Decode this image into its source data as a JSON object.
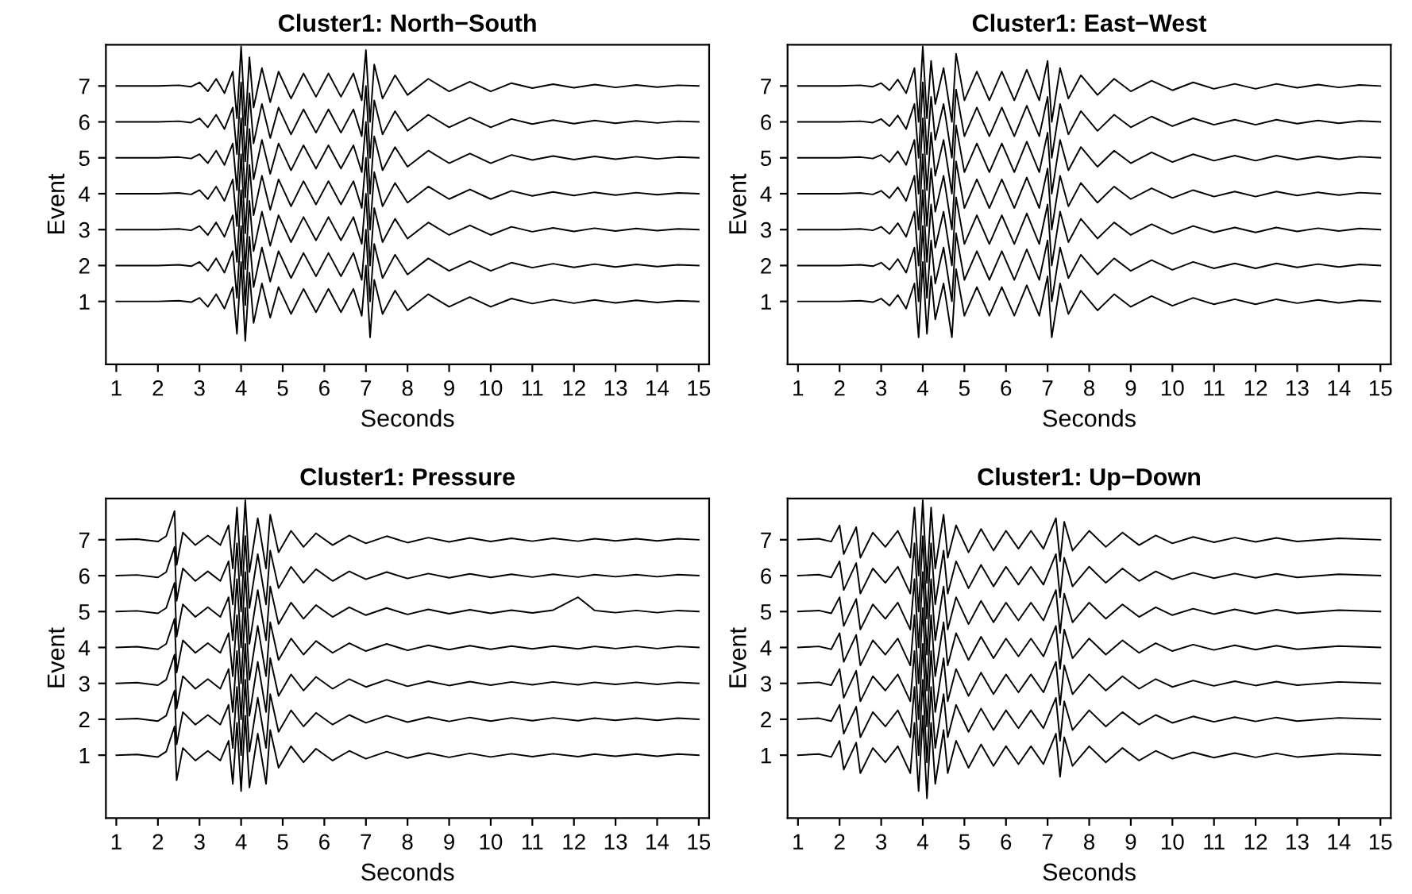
{
  "chart_data": [
    {
      "type": "line",
      "title": "Cluster1: North−South",
      "xlabel": "Seconds",
      "ylabel": "Event",
      "xlim": [
        0.75,
        15.25
      ],
      "xticks": [
        1,
        2,
        3,
        4,
        5,
        6,
        7,
        8,
        9,
        10,
        11,
        12,
        13,
        14,
        15
      ],
      "ylim": [
        -0.75,
        8.15
      ],
      "yticks": [
        1,
        2,
        3,
        4,
        5,
        6,
        7
      ],
      "line_style": "solid",
      "x": [
        1,
        1.5,
        2,
        2.5,
        2.8,
        3.0,
        3.2,
        3.4,
        3.6,
        3.8,
        3.9,
        4.0,
        4.1,
        4.2,
        4.3,
        4.5,
        4.7,
        4.9,
        5.2,
        5.5,
        5.8,
        6.1,
        6.4,
        6.7,
        6.9,
        7.0,
        7.1,
        7.2,
        7.4,
        7.7,
        8.0,
        8.5,
        9.0,
        9.5,
        10,
        10.5,
        11,
        11.5,
        12,
        12.5,
        13,
        13.5,
        14,
        14.5,
        15
      ],
      "series": [
        {
          "color": "#000000",
          "values": [
            1,
            1,
            1,
            1.02,
            0.98,
            1.1,
            0.85,
            1.2,
            0.8,
            1.4,
            0.1,
            2.1,
            -0.1,
            1.8,
            0.4,
            1.5,
            0.55,
            1.4,
            0.65,
            1.35,
            0.7,
            1.35,
            0.7,
            1.35,
            0.6,
            2,
            0,
            1.6,
            0.65,
            1.3,
            0.75,
            1.2,
            0.85,
            1.12,
            0.85,
            1.08,
            0.94,
            1.05,
            0.95,
            1.04,
            0.96,
            1.03,
            0.97,
            1.02,
            1
          ]
        },
        {
          "color": "#000000",
          "values": [
            2,
            2,
            2,
            2.02,
            1.98,
            2.1,
            1.85,
            2.2,
            1.8,
            2.4,
            1.1,
            3.1,
            0.9,
            2.8,
            1.4,
            2.5,
            1.55,
            2.4,
            1.65,
            2.35,
            1.7,
            2.35,
            1.7,
            2.35,
            1.6,
            3,
            1,
            2.6,
            1.65,
            2.3,
            1.75,
            2.2,
            1.85,
            2.12,
            1.85,
            2.08,
            1.94,
            2.05,
            1.95,
            2.04,
            1.96,
            2.03,
            1.97,
            2.02,
            2
          ]
        },
        {
          "color": "#000000",
          "values": [
            3,
            3,
            3,
            3.02,
            2.98,
            3.1,
            2.85,
            3.2,
            2.8,
            3.4,
            2.1,
            4.1,
            1.9,
            3.8,
            2.4,
            3.5,
            2.55,
            3.4,
            2.65,
            3.35,
            2.7,
            3.35,
            2.7,
            3.35,
            2.6,
            4,
            2,
            3.6,
            2.65,
            3.3,
            2.75,
            3.2,
            2.85,
            3.12,
            2.85,
            3.08,
            2.94,
            3.05,
            2.95,
            3.04,
            2.96,
            3.03,
            2.97,
            3.02,
            3
          ]
        },
        {
          "color": "#000000",
          "values": [
            4,
            4,
            4,
            4.02,
            3.98,
            4.1,
            3.85,
            4.2,
            3.8,
            4.4,
            3.1,
            5.1,
            2.9,
            4.8,
            3.4,
            4.5,
            3.55,
            4.4,
            3.65,
            4.35,
            3.7,
            4.35,
            3.7,
            4.35,
            3.6,
            5,
            3,
            4.6,
            3.65,
            4.3,
            3.75,
            4.2,
            3.85,
            4.12,
            3.85,
            4.08,
            3.94,
            4.05,
            3.95,
            4.04,
            3.96,
            4.03,
            3.97,
            4.02,
            4
          ]
        },
        {
          "color": "#000000",
          "values": [
            5,
            5,
            5,
            5.02,
            4.98,
            5.1,
            4.85,
            5.2,
            4.8,
            5.4,
            4.1,
            6.1,
            3.9,
            5.8,
            4.4,
            5.5,
            4.55,
            5.4,
            4.65,
            5.35,
            4.7,
            5.35,
            4.7,
            5.35,
            4.6,
            6,
            4,
            5.6,
            4.65,
            5.3,
            4.75,
            5.2,
            4.85,
            5.12,
            4.85,
            5.08,
            4.94,
            5.05,
            4.95,
            5.04,
            4.96,
            5.03,
            4.97,
            5.02,
            5
          ]
        },
        {
          "color": "#000000",
          "values": [
            6,
            6,
            6,
            6.02,
            5.98,
            6.1,
            5.85,
            6.2,
            5.8,
            6.4,
            5.1,
            7.1,
            4.9,
            6.8,
            5.4,
            6.5,
            5.55,
            6.4,
            5.65,
            6.35,
            5.7,
            6.35,
            5.7,
            6.35,
            5.6,
            7,
            5,
            6.6,
            5.65,
            6.3,
            5.75,
            6.2,
            5.85,
            6.12,
            5.85,
            6.08,
            5.94,
            6.05,
            5.95,
            6.04,
            5.96,
            6.03,
            5.97,
            6.02,
            6
          ]
        },
        {
          "color": "#000000",
          "values": [
            7,
            7,
            7,
            7.02,
            6.98,
            7.1,
            6.85,
            7.2,
            6.8,
            7.4,
            6.1,
            8.1,
            5.9,
            7.8,
            6.4,
            7.5,
            6.55,
            7.4,
            6.65,
            7.35,
            6.7,
            7.35,
            6.7,
            7.35,
            6.6,
            8,
            6,
            7.6,
            6.65,
            7.3,
            6.75,
            7.2,
            6.85,
            7.12,
            6.85,
            7.08,
            6.94,
            7.05,
            6.95,
            7.04,
            6.96,
            7.03,
            6.97,
            7.02,
            7
          ]
        }
      ]
    },
    {
      "type": "line",
      "title": "Cluster1: East−West",
      "xlabel": "Seconds",
      "ylabel": "Event",
      "xlim": [
        0.75,
        15.25
      ],
      "xticks": [
        1,
        2,
        3,
        4,
        5,
        6,
        7,
        8,
        9,
        10,
        11,
        12,
        13,
        14,
        15
      ],
      "ylim": [
        -0.75,
        8.15
      ],
      "yticks": [
        1,
        2,
        3,
        4,
        5,
        6,
        7
      ],
      "line_style": "solid",
      "x": [
        1,
        1.5,
        2,
        2.5,
        2.8,
        3.0,
        3.2,
        3.4,
        3.6,
        3.8,
        3.9,
        4.0,
        4.1,
        4.2,
        4.3,
        4.5,
        4.7,
        4.8,
        5.0,
        5.3,
        5.6,
        5.9,
        6.2,
        6.5,
        6.8,
        7.0,
        7.1,
        7.3,
        7.5,
        7.8,
        8.2,
        8.6,
        9.0,
        9.5,
        10,
        10.5,
        11,
        11.5,
        12,
        12.5,
        13,
        13.5,
        14,
        14.5,
        15
      ],
      "series": [
        {
          "color": "#000000",
          "values": [
            1,
            1,
            1,
            1.02,
            0.98,
            1.08,
            0.88,
            1.18,
            0.8,
            1.5,
            0,
            2.1,
            0.1,
            1.7,
            0.5,
            1.5,
            0,
            1.9,
            0.6,
            1.4,
            0.6,
            1.4,
            0.6,
            1.45,
            0.6,
            1.7,
            0,
            1.5,
            0.65,
            1.3,
            0.75,
            1.2,
            0.85,
            1.15,
            0.88,
            1.1,
            0.92,
            1.06,
            0.92,
            1.06,
            0.95,
            1.04,
            0.96,
            1.03,
            1
          ]
        },
        {
          "color": "#000000",
          "values": [
            2,
            2,
            2,
            2.02,
            1.98,
            2.08,
            1.88,
            2.18,
            1.8,
            2.5,
            1,
            3.1,
            1.1,
            2.7,
            1.5,
            2.5,
            1,
            2.9,
            1.6,
            2.4,
            1.6,
            2.4,
            1.6,
            2.45,
            1.6,
            2.7,
            1,
            2.5,
            1.65,
            2.3,
            1.75,
            2.2,
            1.85,
            2.15,
            1.88,
            2.1,
            1.92,
            2.06,
            1.92,
            2.06,
            1.95,
            2.04,
            1.96,
            2.03,
            2
          ]
        },
        {
          "color": "#000000",
          "values": [
            3,
            3,
            3,
            3.02,
            2.98,
            3.08,
            2.88,
            3.18,
            2.8,
            3.5,
            2,
            4.1,
            2.1,
            3.7,
            2.5,
            3.5,
            2,
            3.9,
            2.6,
            3.4,
            2.6,
            3.4,
            2.6,
            3.45,
            2.6,
            3.7,
            2,
            3.5,
            2.65,
            3.3,
            2.75,
            3.2,
            2.85,
            3.15,
            2.88,
            3.1,
            2.92,
            3.06,
            2.92,
            3.06,
            2.95,
            3.04,
            2.96,
            3.03,
            3
          ]
        },
        {
          "color": "#000000",
          "values": [
            4,
            4,
            4,
            4.02,
            3.98,
            4.08,
            3.88,
            4.18,
            3.8,
            4.5,
            3,
            5.1,
            3.1,
            4.7,
            3.5,
            4.5,
            3,
            4.9,
            3.6,
            4.4,
            3.6,
            4.4,
            3.6,
            4.45,
            3.6,
            4.7,
            3,
            4.5,
            3.65,
            4.3,
            3.75,
            4.2,
            3.85,
            4.15,
            3.88,
            4.1,
            3.92,
            4.06,
            3.92,
            4.06,
            3.95,
            4.04,
            3.96,
            4.03,
            4
          ]
        },
        {
          "color": "#000000",
          "values": [
            5,
            5,
            5,
            5.02,
            4.98,
            5.08,
            4.88,
            5.18,
            4.8,
            5.5,
            4,
            6.1,
            4.1,
            5.7,
            4.5,
            5.5,
            4,
            5.9,
            4.6,
            5.4,
            4.6,
            5.4,
            4.6,
            5.45,
            4.6,
            5.7,
            4,
            5.5,
            4.65,
            5.3,
            4.75,
            5.2,
            4.85,
            5.15,
            4.88,
            5.1,
            4.92,
            5.06,
            4.92,
            5.06,
            4.95,
            5.04,
            4.96,
            5.03,
            5
          ]
        },
        {
          "color": "#000000",
          "values": [
            6,
            6,
            6,
            6.02,
            5.98,
            6.08,
            5.88,
            6.18,
            5.8,
            6.5,
            5,
            7.1,
            5.1,
            6.7,
            5.5,
            6.5,
            5,
            6.9,
            5.6,
            6.4,
            5.6,
            6.4,
            5.6,
            6.45,
            5.6,
            6.7,
            5,
            6.5,
            5.65,
            6.3,
            5.75,
            6.2,
            5.85,
            6.15,
            5.88,
            6.1,
            5.92,
            6.06,
            5.92,
            6.06,
            5.95,
            6.04,
            5.96,
            6.03,
            6
          ]
        },
        {
          "color": "#000000",
          "values": [
            7,
            7,
            7,
            7.02,
            6.98,
            7.08,
            6.88,
            7.18,
            6.8,
            7.5,
            6,
            8.1,
            6.1,
            7.7,
            6.5,
            7.5,
            6,
            7.9,
            6.6,
            7.4,
            6.6,
            7.4,
            6.6,
            7.45,
            6.6,
            7.7,
            6,
            7.5,
            6.65,
            7.3,
            6.75,
            7.2,
            6.85,
            7.15,
            6.88,
            7.1,
            6.92,
            7.06,
            6.92,
            7.06,
            6.95,
            7.04,
            6.96,
            7.03,
            7
          ]
        }
      ]
    },
    {
      "type": "line",
      "title": "Cluster1: Pressure",
      "xlabel": "Seconds",
      "ylabel": "Event",
      "xlim": [
        0.75,
        15.25
      ],
      "xticks": [
        1,
        2,
        3,
        4,
        5,
        6,
        7,
        8,
        9,
        10,
        11,
        12,
        13,
        14,
        15
      ],
      "ylim": [
        -0.75,
        8.15
      ],
      "yticks": [
        1,
        2,
        3,
        4,
        5,
        6,
        7
      ],
      "line_style": "solid",
      "x": [
        1,
        1.5,
        2.0,
        2.2,
        2.4,
        2.45,
        2.6,
        2.9,
        3.2,
        3.5,
        3.7,
        3.8,
        3.9,
        4.0,
        4.1,
        4.2,
        4.4,
        4.6,
        4.7,
        4.9,
        5.2,
        5.5,
        5.8,
        6.2,
        6.6,
        7.0,
        7.5,
        8.0,
        8.5,
        9.0,
        9.5,
        10,
        10.5,
        11,
        11.5,
        12.1,
        12.5,
        13,
        13.5,
        14,
        14.5,
        15
      ],
      "series": [
        {
          "color": "#000000",
          "values": [
            1,
            1.02,
            0.95,
            1.1,
            1.8,
            0.3,
            1.2,
            0.85,
            1.12,
            0.85,
            1.4,
            0.2,
            1.9,
            0,
            2.1,
            0.1,
            1.6,
            0.2,
            1.7,
            0.65,
            1.25,
            0.8,
            1.18,
            0.85,
            1.12,
            0.9,
            1.1,
            0.92,
            1.06,
            0.94,
            1.05,
            0.95,
            1.04,
            0.96,
            1.04,
            0.96,
            1.03,
            0.97,
            1.03,
            0.97,
            1.03,
            1
          ]
        },
        {
          "color": "#000000",
          "values": [
            2,
            2.02,
            1.95,
            2.1,
            2.8,
            1.3,
            2.2,
            1.85,
            2.12,
            1.85,
            2.4,
            1.2,
            2.9,
            1,
            3.1,
            1.1,
            2.6,
            1.2,
            2.7,
            1.65,
            2.25,
            1.8,
            2.18,
            1.85,
            2.12,
            1.9,
            2.1,
            1.92,
            2.06,
            1.94,
            2.05,
            1.95,
            2.04,
            1.96,
            2.04,
            1.96,
            2.03,
            1.97,
            2.03,
            1.97,
            2.03,
            2
          ]
        },
        {
          "color": "#000000",
          "values": [
            3,
            3.02,
            2.95,
            3.1,
            3.8,
            2.3,
            3.2,
            2.85,
            3.12,
            2.85,
            3.4,
            2.2,
            3.9,
            2,
            4.1,
            2.1,
            3.6,
            2.2,
            3.7,
            2.65,
            3.25,
            2.8,
            3.18,
            2.85,
            3.12,
            2.9,
            3.1,
            2.92,
            3.06,
            2.94,
            3.05,
            2.95,
            3.04,
            2.96,
            3.04,
            2.96,
            3.03,
            2.97,
            3.03,
            2.97,
            3.03,
            3
          ]
        },
        {
          "color": "#000000",
          "values": [
            4,
            4.02,
            3.95,
            4.1,
            4.8,
            3.3,
            4.2,
            3.85,
            4.12,
            3.85,
            4.4,
            3.2,
            4.9,
            3,
            5.1,
            3.1,
            4.6,
            3.2,
            4.7,
            3.65,
            4.25,
            3.8,
            4.18,
            3.85,
            4.12,
            3.9,
            4.1,
            3.92,
            4.06,
            3.94,
            4.05,
            3.95,
            4.04,
            3.96,
            4.04,
            3.96,
            4.03,
            3.97,
            4.03,
            3.97,
            4.03,
            4
          ]
        },
        {
          "color": "#000000",
          "values": [
            5,
            5.02,
            4.95,
            5.1,
            5.8,
            4.3,
            5.2,
            4.85,
            5.12,
            4.85,
            5.4,
            4.2,
            5.9,
            4,
            6.1,
            4.1,
            5.6,
            4.2,
            5.7,
            4.65,
            5.25,
            4.8,
            5.18,
            4.85,
            5.12,
            4.9,
            5.1,
            4.92,
            5.06,
            4.94,
            5.05,
            4.95,
            5.04,
            4.96,
            5.04,
            5.4,
            5.03,
            4.97,
            5.03,
            4.97,
            5.03,
            5
          ]
        },
        {
          "color": "#000000",
          "values": [
            6,
            6.02,
            5.95,
            6.1,
            6.8,
            5.3,
            6.2,
            5.85,
            6.12,
            5.85,
            6.4,
            5.2,
            6.9,
            5,
            7.1,
            5.1,
            6.6,
            5.2,
            6.7,
            5.65,
            6.25,
            5.8,
            6.18,
            5.85,
            6.12,
            5.9,
            6.1,
            5.92,
            6.06,
            5.94,
            6.05,
            5.95,
            6.04,
            5.96,
            6.04,
            5.96,
            6.03,
            5.97,
            6.03,
            5.97,
            6.03,
            6
          ]
        },
        {
          "color": "#000000",
          "values": [
            7,
            7.02,
            6.95,
            7.1,
            7.8,
            6.3,
            7.2,
            6.85,
            7.12,
            6.85,
            7.4,
            6.2,
            7.9,
            6,
            8.1,
            6.1,
            7.6,
            6.2,
            7.7,
            6.65,
            7.25,
            6.8,
            7.18,
            6.85,
            7.12,
            6.9,
            7.1,
            6.92,
            7.06,
            6.94,
            7.05,
            6.95,
            7.04,
            6.96,
            7.04,
            6.96,
            7.03,
            6.97,
            7.03,
            6.97,
            7.03,
            7
          ]
        }
      ]
    },
    {
      "type": "line",
      "title": "Cluster1: Up−Down",
      "xlabel": "Seconds",
      "ylabel": "Event",
      "xlim": [
        0.75,
        15.25
      ],
      "xticks": [
        1,
        2,
        3,
        4,
        5,
        6,
        7,
        8,
        9,
        10,
        11,
        12,
        13,
        14,
        15
      ],
      "ylim": [
        -0.75,
        8.15
      ],
      "yticks": [
        1,
        2,
        3,
        4,
        5,
        6,
        7
      ],
      "line_style": "solid",
      "x": [
        1,
        1.5,
        1.8,
        2.0,
        2.1,
        2.4,
        2.5,
        2.8,
        3.1,
        3.4,
        3.7,
        3.8,
        3.9,
        4.0,
        4.1,
        4.2,
        4.3,
        4.5,
        4.6,
        4.8,
        5.1,
        5.4,
        5.7,
        6.0,
        6.3,
        6.6,
        6.9,
        7.2,
        7.3,
        7.4,
        7.6,
        8.0,
        8.4,
        8.8,
        9.2,
        9.6,
        10,
        10.5,
        11,
        11.5,
        12,
        12.5,
        13,
        14,
        15
      ],
      "series": [
        {
          "color": "#000000",
          "values": [
            1,
            1.03,
            0.95,
            1.4,
            0.6,
            1.35,
            0.5,
            1.2,
            0.8,
            1.25,
            0.5,
            1.9,
            0,
            2.1,
            -0.2,
            1.9,
            0.2,
            1.7,
            0.5,
            1.4,
            0.65,
            1.3,
            0.7,
            1.25,
            0.75,
            1.25,
            0.75,
            1.6,
            0.4,
            1.5,
            0.7,
            1.25,
            0.8,
            1.2,
            0.85,
            1.12,
            0.9,
            1.08,
            0.93,
            1.06,
            0.94,
            1.05,
            0.95,
            1.04,
            1
          ]
        },
        {
          "color": "#000000",
          "values": [
            2,
            2.03,
            1.95,
            2.4,
            1.6,
            2.35,
            1.5,
            2.2,
            1.8,
            2.25,
            1.5,
            2.9,
            1,
            3.1,
            0.8,
            2.9,
            1.2,
            2.7,
            1.5,
            2.4,
            1.65,
            2.3,
            1.7,
            2.25,
            1.75,
            2.25,
            1.75,
            2.6,
            1.4,
            2.5,
            1.7,
            2.25,
            1.8,
            2.2,
            1.85,
            2.12,
            1.9,
            2.08,
            1.93,
            2.06,
            1.94,
            2.05,
            1.95,
            2.04,
            2
          ]
        },
        {
          "color": "#000000",
          "values": [
            3,
            3.03,
            2.95,
            3.4,
            2.6,
            3.35,
            2.5,
            3.2,
            2.8,
            3.25,
            2.5,
            3.9,
            2,
            4.1,
            1.8,
            3.9,
            2.2,
            3.7,
            2.5,
            3.4,
            2.65,
            3.3,
            2.7,
            3.25,
            2.75,
            3.25,
            2.75,
            3.6,
            2.4,
            3.5,
            2.7,
            3.25,
            2.8,
            3.2,
            2.85,
            3.12,
            2.9,
            3.08,
            2.93,
            3.06,
            2.94,
            3.05,
            2.95,
            3.04,
            3
          ]
        },
        {
          "color": "#000000",
          "values": [
            4,
            4.03,
            3.95,
            4.4,
            3.6,
            4.35,
            3.5,
            4.2,
            3.8,
            4.25,
            3.5,
            4.9,
            3,
            5.1,
            2.8,
            4.9,
            3.2,
            4.7,
            3.5,
            4.4,
            3.65,
            4.3,
            3.7,
            4.25,
            3.75,
            4.25,
            3.75,
            4.6,
            3.4,
            4.5,
            3.7,
            4.25,
            3.8,
            4.2,
            3.85,
            4.12,
            3.9,
            4.08,
            3.93,
            4.06,
            3.94,
            4.05,
            3.95,
            4.04,
            4
          ]
        },
        {
          "color": "#000000",
          "values": [
            5,
            5.03,
            4.95,
            5.4,
            4.6,
            5.35,
            4.5,
            5.2,
            4.8,
            5.25,
            4.5,
            5.9,
            4,
            6.1,
            3.8,
            5.9,
            4.2,
            5.7,
            4.5,
            5.4,
            4.65,
            5.3,
            4.7,
            5.25,
            4.75,
            5.25,
            4.75,
            5.6,
            4.4,
            5.5,
            4.7,
            5.25,
            4.8,
            5.2,
            4.85,
            5.12,
            4.9,
            5.08,
            4.93,
            5.06,
            4.94,
            5.05,
            4.95,
            5.04,
            5
          ]
        },
        {
          "color": "#000000",
          "values": [
            6,
            6.03,
            5.95,
            6.4,
            5.6,
            6.35,
            5.5,
            6.2,
            5.8,
            6.25,
            5.5,
            6.9,
            5,
            7.1,
            4.8,
            6.9,
            5.2,
            6.7,
            5.5,
            6.4,
            5.65,
            6.3,
            5.7,
            6.25,
            5.75,
            6.25,
            5.75,
            6.6,
            5.4,
            6.5,
            5.7,
            6.25,
            5.8,
            6.2,
            5.85,
            6.12,
            5.9,
            6.08,
            5.93,
            6.06,
            5.94,
            6.05,
            5.95,
            6.04,
            6
          ]
        },
        {
          "color": "#000000",
          "values": [
            7,
            7.03,
            6.95,
            7.4,
            6.6,
            7.35,
            6.5,
            7.2,
            6.8,
            7.25,
            6.5,
            7.9,
            6,
            8.1,
            5.8,
            7.9,
            6.2,
            7.7,
            6.5,
            7.4,
            6.65,
            7.3,
            6.7,
            7.25,
            6.75,
            7.25,
            6.75,
            7.6,
            6.4,
            7.5,
            6.7,
            7.25,
            6.8,
            7.2,
            6.85,
            7.12,
            6.9,
            7.08,
            6.93,
            7.06,
            6.94,
            7.05,
            6.95,
            7.04,
            7
          ]
        }
      ]
    }
  ]
}
